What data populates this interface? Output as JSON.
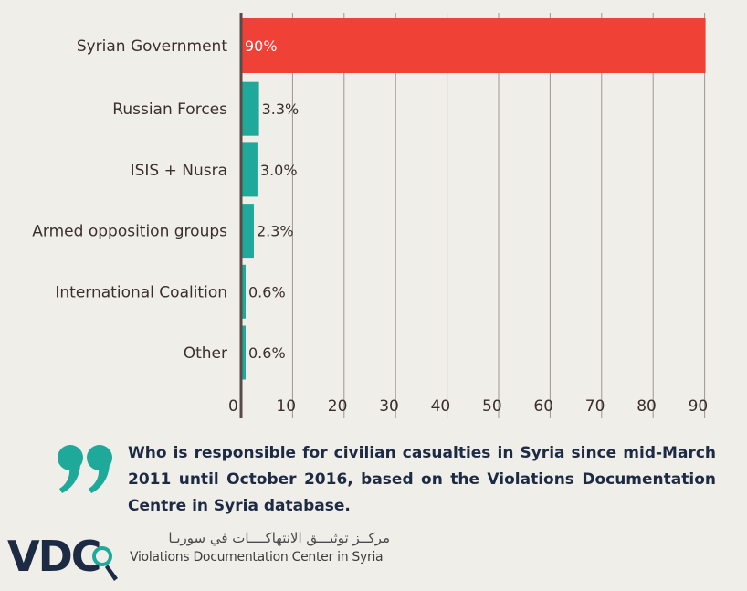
{
  "chart_data": {
    "type": "bar",
    "orientation": "horizontal",
    "title": "Who is responsible for civilian casualties in Syria since mid-March 2011 until October 2016, based on the Violations Documentation Centre in Syria database.",
    "categories": [
      "Syrian Government",
      "Russian Forces",
      "ISIS + Nusra",
      "Armed opposition groups",
      "International Coalition",
      "Other"
    ],
    "values": [
      90,
      3.3,
      3.0,
      2.3,
      0.6,
      0.6
    ],
    "value_labels": [
      "90%",
      "3.3%",
      "3.0%",
      "2.3%",
      "0.6%",
      "0.6%"
    ],
    "colors": [
      "#ef4136",
      "#1fa99a",
      "#1fa99a",
      "#1fa99a",
      "#1fa99a",
      "#1fa99a"
    ],
    "xticks": [
      0,
      10,
      20,
      30,
      40,
      50,
      60,
      70,
      80,
      90
    ],
    "xlim": [
      0,
      90
    ],
    "grid": true,
    "xlabel": "",
    "ylabel": ""
  },
  "caption": "Who is responsible for civilian casualties in Syria since mid-March 2011 until October 2016, based on the Violations Documentation Centre in Syria database.",
  "organization": {
    "logo_text": "VDC",
    "name_ar": "مركــز توثيـــق الانتهاكــــات في سوريـا",
    "name_en": "Violations Documentation Center in Syria"
  },
  "colors": {
    "background": "#f0eee9",
    "highlight": "#ef4136",
    "accent": "#1fa99a",
    "text_dark": "#1d2a44"
  }
}
